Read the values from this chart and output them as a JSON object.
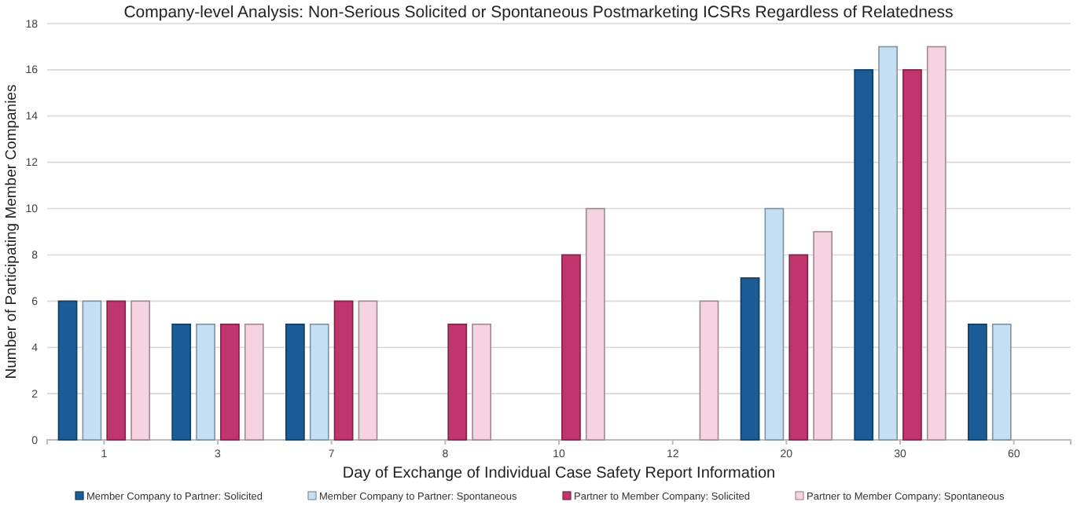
{
  "chart_data": {
    "type": "bar",
    "title": "Company-level Analysis: Non-Serious Solicited or Spontaneous Postmarketing ICSRs Regardless of Relatedness",
    "xlabel": "Day of Exchange of Individual Case Safety Report Information",
    "ylabel": "Number of Participating Member Companies",
    "categories": [
      "1",
      "3",
      "7",
      "8",
      "10",
      "12",
      "20",
      "30",
      "60"
    ],
    "series": [
      {
        "name": "Member Company to Partner: Solicited",
        "color": "#1a5c96",
        "values": [
          6,
          5,
          5,
          null,
          null,
          null,
          7,
          16,
          5
        ]
      },
      {
        "name": "Member Company to Partner: Spontaneous",
        "color": "#c5dff5",
        "values": [
          6,
          5,
          5,
          null,
          null,
          null,
          10,
          17,
          5
        ]
      },
      {
        "name": "Partner to Member Company: Solicited",
        "color": "#c0356b",
        "values": [
          6,
          5,
          6,
          5,
          8,
          null,
          8,
          16,
          null
        ]
      },
      {
        "name": "Partner to Member Company: Spontaneous",
        "color": "#f5d3e0",
        "values": [
          6,
          5,
          6,
          5,
          10,
          6,
          9,
          17,
          null
        ]
      }
    ],
    "ylim": [
      0,
      18
    ],
    "yticks": [
      0,
      2,
      4,
      6,
      8,
      10,
      12,
      14,
      16,
      18
    ],
    "grid": "y",
    "legend": "bottom"
  }
}
